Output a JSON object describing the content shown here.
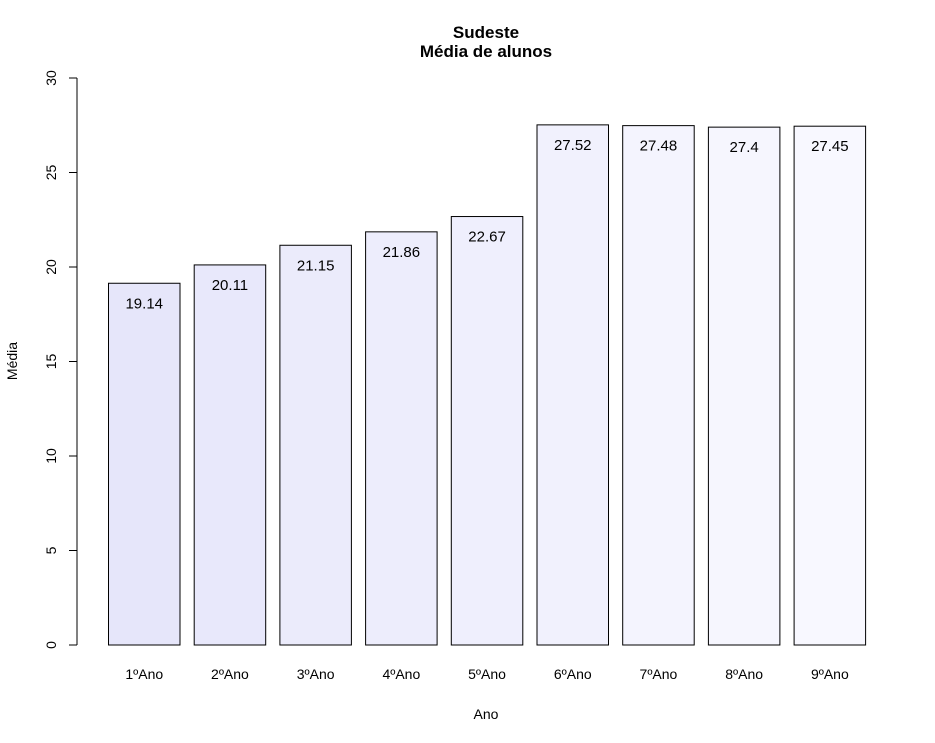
{
  "chart_data": {
    "type": "bar",
    "title": "Sudeste",
    "subtitle": "Média de alunos",
    "xlabel": "Ano",
    "ylabel": "Média",
    "categories": [
      "1ºAno",
      "2ºAno",
      "3ºAno",
      "4ºAno",
      "5ºAno",
      "6ºAno",
      "7ºAno",
      "8ºAno",
      "9ºAno"
    ],
    "values": [
      19.14,
      20.11,
      21.15,
      21.86,
      22.67,
      27.52,
      27.48,
      27.4,
      27.45
    ],
    "data_labels": [
      "19.14",
      "20.11",
      "21.15",
      "21.86",
      "22.67",
      "27.52",
      "27.48",
      "27.4",
      "27.45"
    ],
    "ylim": [
      0,
      30
    ],
    "yticks": [
      0,
      5,
      10,
      15,
      20,
      25,
      30
    ],
    "grid": false,
    "bar_color_start": "#e6e6fa",
    "bar_color_end": "#f8f8ff",
    "edge_color": "#000000"
  }
}
